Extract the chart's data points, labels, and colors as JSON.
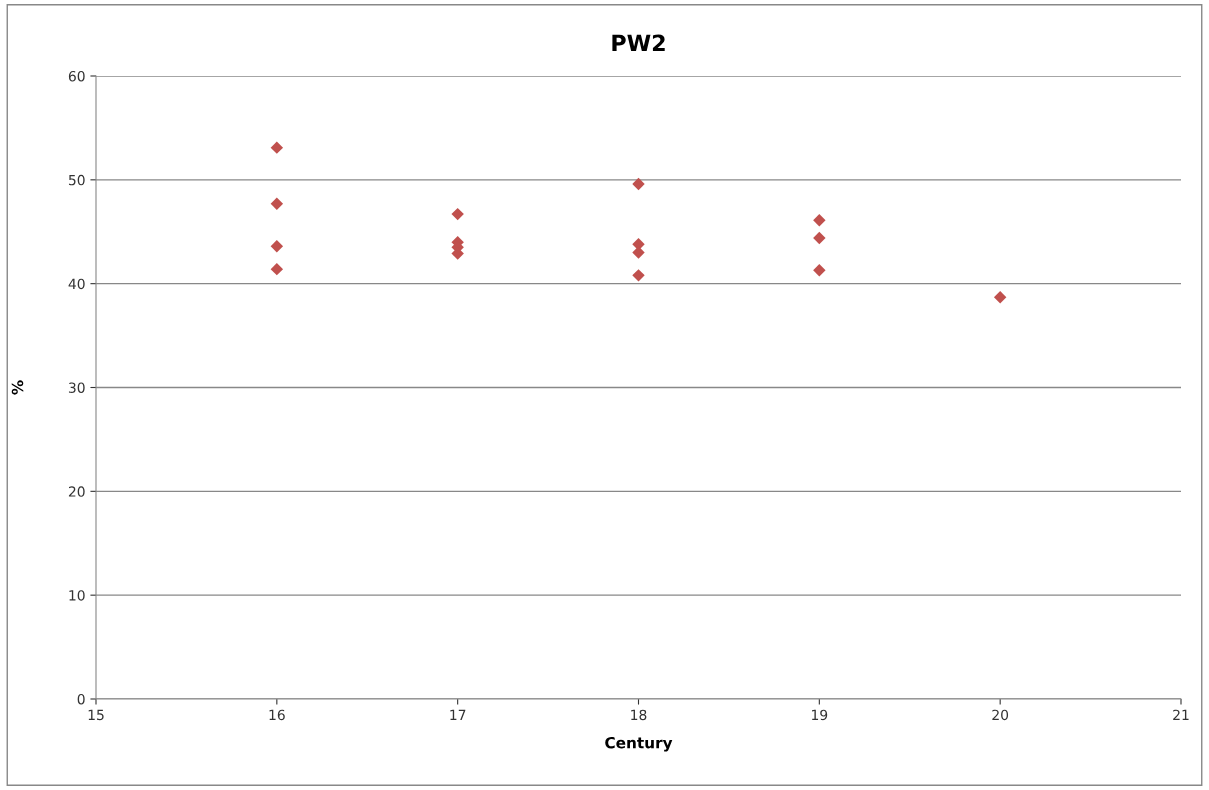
{
  "chart_data": {
    "type": "scatter",
    "title": "PW2",
    "xlabel": "Century",
    "ylabel": "%",
    "x": [
      16,
      16,
      16,
      16,
      17,
      17,
      17,
      17,
      18,
      18,
      18,
      18,
      19,
      19,
      19,
      20
    ],
    "series": [
      {
        "color": "#c0504d",
        "values": [
          53.1,
          47.7,
          43.6,
          41.4,
          46.7,
          44.0,
          43.5,
          42.9,
          49.6,
          43.8,
          43.0,
          40.8,
          46.1,
          44.4,
          41.3,
          38.7
        ]
      }
    ],
    "xlim": [
      15,
      21
    ],
    "xticks": [
      15,
      16,
      17,
      18,
      19,
      20,
      21
    ],
    "ylim": [
      0,
      60
    ],
    "yticks": [
      0,
      10,
      20,
      30,
      40,
      50,
      60
    ],
    "grid": "y",
    "marker": "diamond",
    "legend": false
  }
}
